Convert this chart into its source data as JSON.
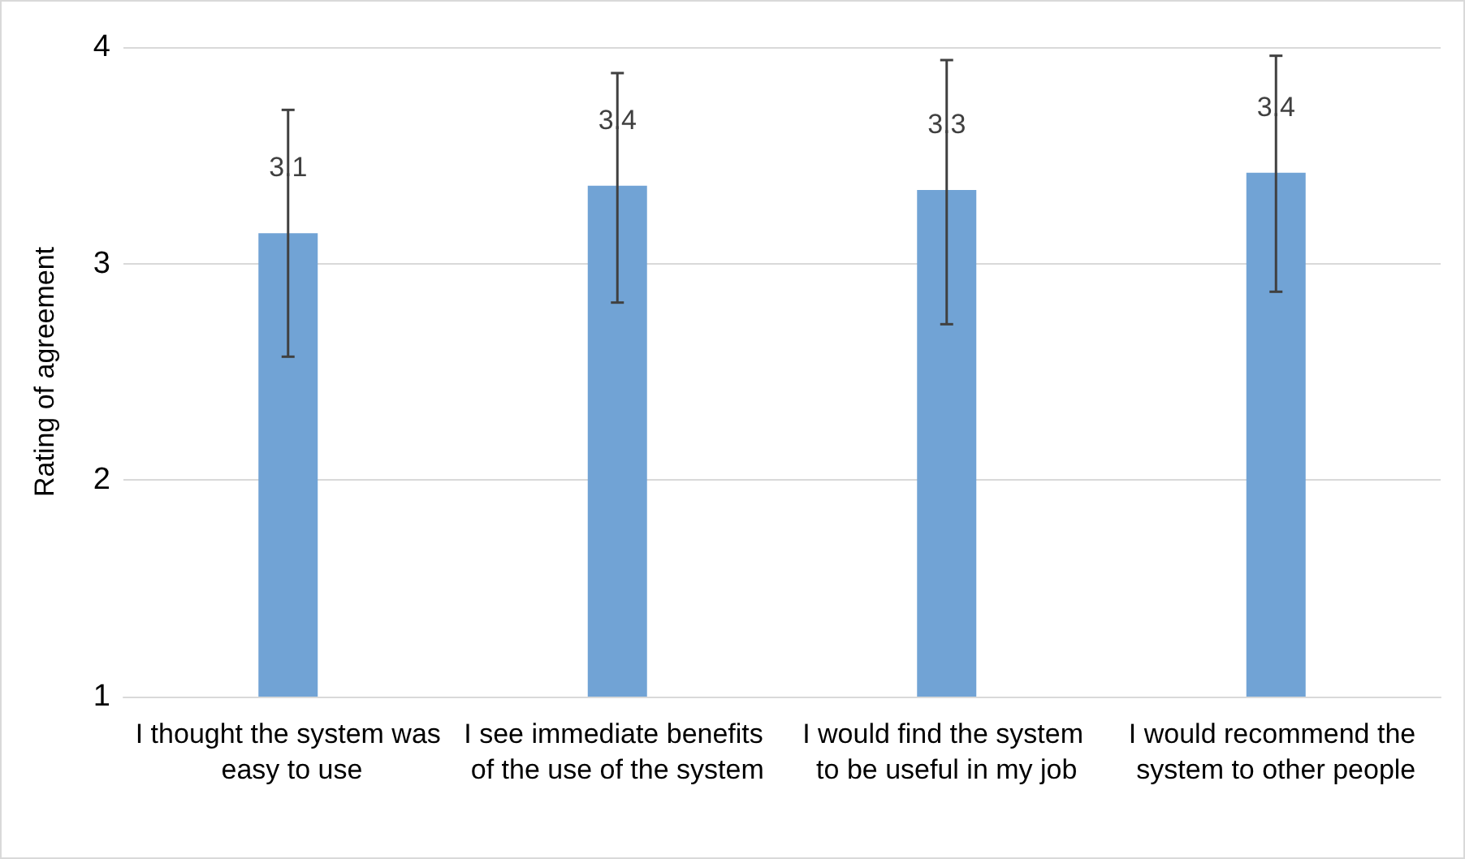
{
  "chart_data": {
    "type": "bar",
    "ylabel": "Rating of agreement",
    "categories": [
      "I thought the system was easy to use",
      "I see immediate benefits of the use of the system",
      "I would find the system to be useful in my job",
      "I would recommend the system to other people"
    ],
    "values": [
      3.14,
      3.36,
      3.34,
      3.42
    ],
    "value_labels": [
      "3.1",
      "3.4",
      "3.3",
      "3.4"
    ],
    "errors": [
      [
        2.57,
        3.71
      ],
      [
        2.82,
        3.88
      ],
      [
        2.72,
        3.94
      ],
      [
        2.87,
        3.96
      ]
    ],
    "color": "#71a3d5",
    "ylim": [
      1,
      4
    ],
    "yticks": [
      1,
      2,
      3,
      4
    ],
    "grid": "y"
  }
}
